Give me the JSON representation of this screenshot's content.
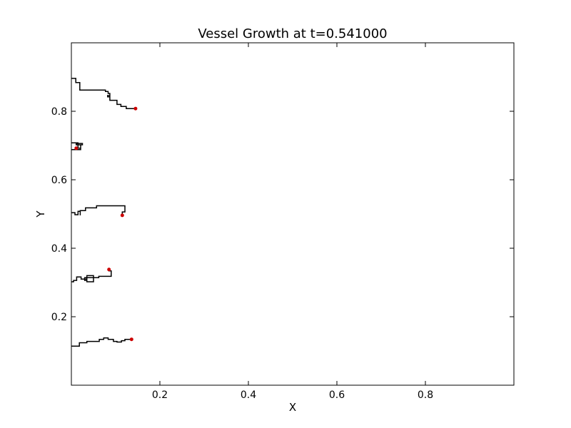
{
  "chart_data": {
    "type": "line",
    "title": "Vessel Growth at t=0.541000",
    "xlabel": "X",
    "ylabel": "Y",
    "xlim": [
      0.0,
      1.0
    ],
    "ylim": [
      0.0,
      1.0
    ],
    "xticks": [
      "0.2",
      "0.4",
      "0.6",
      "0.8"
    ],
    "yticks": [
      "0.2",
      "0.4",
      "0.6",
      "0.8"
    ],
    "xtick_values": [
      0.2,
      0.4,
      0.6,
      0.8
    ],
    "ytick_values": [
      0.2,
      0.4,
      0.6,
      0.8
    ],
    "grid": false,
    "line_color": "#000000",
    "tip_color": "#cc0000",
    "series": [
      {
        "points": [
          [
            0.0,
            0.896
          ],
          [
            0.01,
            0.896
          ],
          [
            0.01,
            0.884
          ],
          [
            0.019,
            0.884
          ],
          [
            0.019,
            0.862
          ],
          [
            0.077,
            0.862
          ],
          [
            0.077,
            0.858
          ],
          [
            0.083,
            0.858
          ],
          [
            0.083,
            0.852
          ],
          [
            0.087,
            0.852
          ],
          [
            0.087,
            0.842
          ],
          [
            0.082,
            0.842
          ],
          [
            0.082,
            0.846
          ],
          [
            0.087,
            0.846
          ],
          [
            0.087,
            0.832
          ],
          [
            0.103,
            0.832
          ],
          [
            0.103,
            0.82
          ],
          [
            0.112,
            0.82
          ],
          [
            0.112,
            0.814
          ],
          [
            0.124,
            0.814
          ],
          [
            0.124,
            0.808
          ],
          [
            0.145,
            0.808
          ]
        ],
        "tip": [
          0.145,
          0.808
        ]
      },
      {
        "points": [
          [
            0.0,
            0.708
          ],
          [
            0.015,
            0.708
          ],
          [
            0.015,
            0.692
          ],
          [
            0.021,
            0.692
          ],
          [
            0.021,
            0.702
          ],
          [
            0.011,
            0.702
          ],
          [
            0.011,
            0.706
          ],
          [
            0.025,
            0.706
          ],
          [
            0.025,
            0.702
          ],
          [
            0.021,
            0.702
          ],
          [
            0.021,
            0.688
          ],
          [
            0.0,
            0.688
          ]
        ],
        "tip": [
          0.011,
          0.692
        ]
      },
      {
        "points": [
          [
            0.0,
            0.504
          ],
          [
            0.008,
            0.504
          ],
          [
            0.008,
            0.498
          ],
          [
            0.015,
            0.498
          ],
          [
            0.015,
            0.508
          ],
          [
            0.02,
            0.508
          ],
          [
            0.02,
            0.496
          ],
          [
            0.02,
            0.51
          ],
          [
            0.032,
            0.51
          ],
          [
            0.032,
            0.518
          ],
          [
            0.057,
            0.518
          ],
          [
            0.057,
            0.524
          ],
          [
            0.121,
            0.524
          ],
          [
            0.121,
            0.506
          ],
          [
            0.115,
            0.506
          ],
          [
            0.115,
            0.496
          ]
        ],
        "tip": [
          0.115,
          0.496
        ]
      },
      {
        "points": [
          [
            0.0,
            0.302
          ],
          [
            0.005,
            0.302
          ],
          [
            0.005,
            0.306
          ],
          [
            0.012,
            0.306
          ],
          [
            0.012,
            0.316
          ],
          [
            0.022,
            0.316
          ],
          [
            0.022,
            0.31
          ],
          [
            0.035,
            0.31
          ],
          [
            0.035,
            0.302
          ],
          [
            0.05,
            0.302
          ],
          [
            0.05,
            0.32
          ],
          [
            0.035,
            0.32
          ],
          [
            0.035,
            0.306
          ],
          [
            0.03,
            0.306
          ],
          [
            0.03,
            0.314
          ],
          [
            0.062,
            0.314
          ],
          [
            0.062,
            0.318
          ],
          [
            0.09,
            0.318
          ],
          [
            0.09,
            0.334
          ],
          [
            0.085,
            0.334
          ],
          [
            0.085,
            0.34
          ]
        ],
        "tip": [
          0.085,
          0.338
        ]
      },
      {
        "points": [
          [
            0.0,
            0.114
          ],
          [
            0.018,
            0.114
          ],
          [
            0.018,
            0.124
          ],
          [
            0.035,
            0.124
          ],
          [
            0.035,
            0.128
          ],
          [
            0.063,
            0.128
          ],
          [
            0.063,
            0.134
          ],
          [
            0.073,
            0.134
          ],
          [
            0.073,
            0.138
          ],
          [
            0.083,
            0.138
          ],
          [
            0.083,
            0.134
          ],
          [
            0.095,
            0.134
          ],
          [
            0.095,
            0.128
          ],
          [
            0.103,
            0.128
          ],
          [
            0.103,
            0.126
          ],
          [
            0.113,
            0.126
          ],
          [
            0.113,
            0.13
          ],
          [
            0.121,
            0.13
          ],
          [
            0.121,
            0.134
          ],
          [
            0.136,
            0.134
          ]
        ],
        "tip": [
          0.136,
          0.134
        ]
      }
    ]
  }
}
